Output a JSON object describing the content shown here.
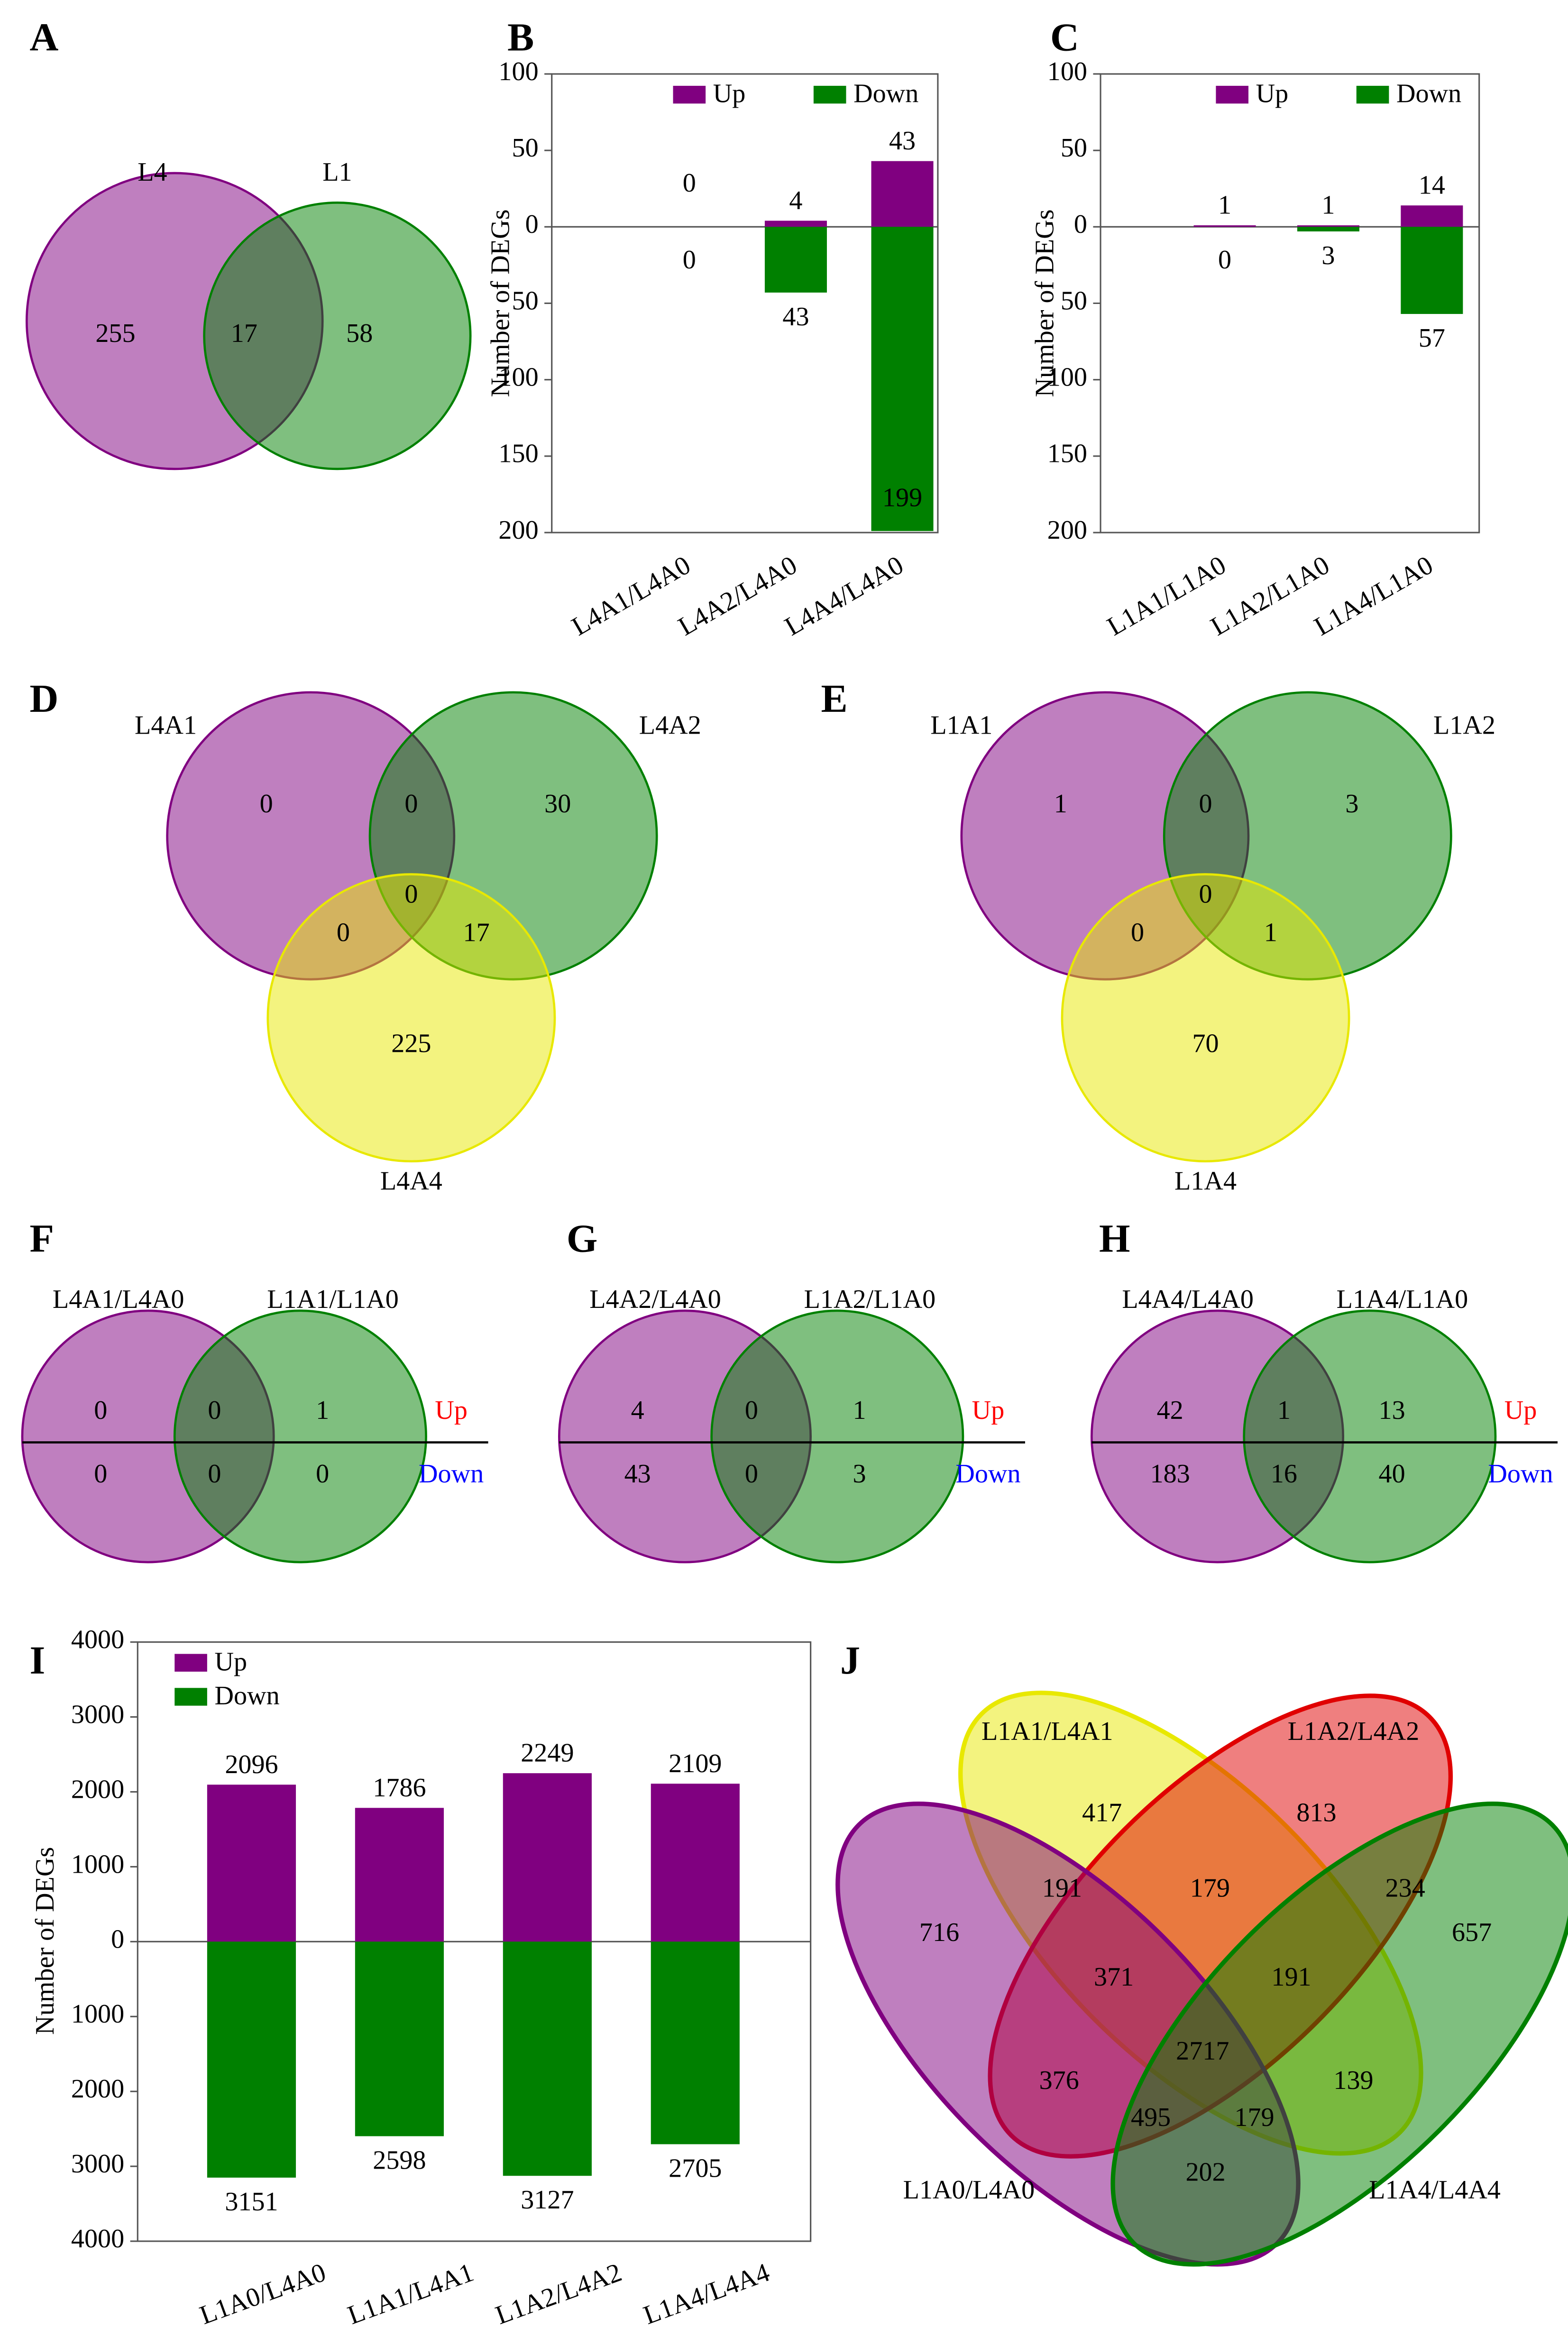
{
  "chart_data": [
    {
      "type": "venn",
      "panel": "A",
      "sets": [
        {
          "name": "L4",
          "color": "#800080"
        },
        {
          "name": "L1",
          "color": "#008000"
        }
      ],
      "regions": [
        255,
        17,
        58
      ]
    },
    {
      "type": "bar",
      "panel": "B",
      "ylabel": "Number of DEGs",
      "categories": [
        "L4A1/L4A0",
        "L4A2/L4A0",
        "L4A4/L4A0"
      ],
      "series": [
        {
          "name": "Up",
          "color": "#800080",
          "values": [
            0,
            4,
            43
          ]
        },
        {
          "name": "Down",
          "color": "#008000",
          "values": [
            0,
            -43,
            -199
          ],
          "value_labels": [
            "0",
            "43",
            "199"
          ]
        }
      ],
      "ylim": [
        -200,
        100
      ],
      "yticks": [
        100,
        50,
        0,
        {
          "value": -50,
          "label": "50"
        },
        {
          "value": -100,
          "label": "100"
        },
        {
          "value": -150,
          "label": "150"
        },
        {
          "value": -200,
          "label": "200"
        }
      ]
    },
    {
      "type": "bar",
      "panel": "C",
      "ylabel": "Number of DEGs",
      "categories": [
        "L1A1/L1A0",
        "L1A2/L1A0",
        "L1A4/L1A0"
      ],
      "series": [
        {
          "name": "Up",
          "color": "#800080",
          "values": [
            1,
            1,
            14
          ]
        },
        {
          "name": "Down",
          "color": "#008000",
          "values": [
            0,
            -3,
            -57
          ],
          "value_labels": [
            "0",
            "3",
            "57"
          ]
        }
      ],
      "ylim": [
        -200,
        100
      ],
      "yticks": [
        100,
        50,
        0,
        {
          "value": -50,
          "label": "50"
        },
        {
          "value": -100,
          "label": "100"
        },
        {
          "value": -150,
          "label": "150"
        },
        {
          "value": -200,
          "label": "200"
        }
      ]
    },
    {
      "type": "venn3",
      "panel": "D",
      "sets": [
        {
          "name": "L4A1",
          "color": "#800080"
        },
        {
          "name": "L4A2",
          "color": "#008000"
        },
        {
          "name": "L4A4",
          "color": "#e8e800"
        }
      ],
      "regions": [
        0,
        30,
        225,
        0,
        0,
        17,
        0
      ]
    },
    {
      "type": "venn3",
      "panel": "E",
      "sets": [
        {
          "name": "L1A1",
          "color": "#800080"
        },
        {
          "name": "L1A2",
          "color": "#008000"
        },
        {
          "name": "L1A4",
          "color": "#e8e800"
        }
      ],
      "regions": [
        1,
        3,
        70,
        0,
        0,
        1,
        0
      ]
    },
    {
      "type": "venn-split",
      "panel": "F",
      "sets": [
        {
          "name": "L4A1/L4A0",
          "color": "#800080"
        },
        {
          "name": "L1A1/L1A0",
          "color": "#008000"
        }
      ],
      "rows": [
        {
          "name": "Up",
          "color": "#ff0000",
          "regions": [
            0,
            0,
            1
          ]
        },
        {
          "name": "Down",
          "color": "#0000ff",
          "regions": [
            0,
            0,
            0
          ]
        }
      ]
    },
    {
      "type": "venn-split",
      "panel": "G",
      "sets": [
        {
          "name": "L4A2/L4A0",
          "color": "#800080"
        },
        {
          "name": "L1A2/L1A0",
          "color": "#008000"
        }
      ],
      "rows": [
        {
          "name": "Up",
          "color": "#ff0000",
          "regions": [
            4,
            0,
            1
          ]
        },
        {
          "name": "Down",
          "color": "#0000ff",
          "regions": [
            43,
            0,
            3
          ]
        }
      ]
    },
    {
      "type": "venn-split",
      "panel": "H",
      "sets": [
        {
          "name": "L4A4/L4A0",
          "color": "#800080"
        },
        {
          "name": "L1A4/L1A0",
          "color": "#008000"
        }
      ],
      "rows": [
        {
          "name": "Up",
          "color": "#ff0000",
          "regions": [
            42,
            1,
            13
          ]
        },
        {
          "name": "Down",
          "color": "#0000ff",
          "regions": [
            183,
            16,
            40
          ]
        }
      ]
    },
    {
      "type": "bar",
      "panel": "I",
      "ylabel": "Number of DEGs",
      "categories": [
        "L1A0/L4A0",
        "L1A1/L4A1",
        "L1A2/L4A2",
        "L1A4/L4A4"
      ],
      "series": [
        {
          "name": "Up",
          "color": "#800080",
          "values": [
            2096,
            1786,
            2249,
            2109
          ]
        },
        {
          "name": "Down",
          "color": "#008000",
          "values": [
            -3151,
            -2598,
            -3127,
            -2705
          ],
          "value_labels": [
            "3151",
            "2598",
            "3127",
            "2705"
          ]
        }
      ],
      "ylim": [
        -4000,
        4000
      ],
      "yticks": [
        4000,
        3000,
        2000,
        1000,
        0,
        {
          "value": -1000,
          "label": "1000"
        },
        {
          "value": -2000,
          "label": "2000"
        },
        {
          "value": -3000,
          "label": "3000"
        },
        {
          "value": -4000,
          "label": "4000"
        }
      ]
    },
    {
      "type": "venn4",
      "panel": "J",
      "sets": [
        {
          "name": "L1A1/L4A1",
          "color": "#e8e800"
        },
        {
          "name": "L1A2/L4A2",
          "color": "#e00000"
        },
        {
          "name": "L1A0/L4A0",
          "color": "#800080"
        },
        {
          "name": "L1A4/L4A4",
          "color": "#008000"
        }
      ],
      "regions": [
        417,
        813,
        191,
        179,
        234,
        716,
        657,
        371,
        191,
        2717,
        376,
        139,
        495,
        179,
        202
      ]
    }
  ]
}
